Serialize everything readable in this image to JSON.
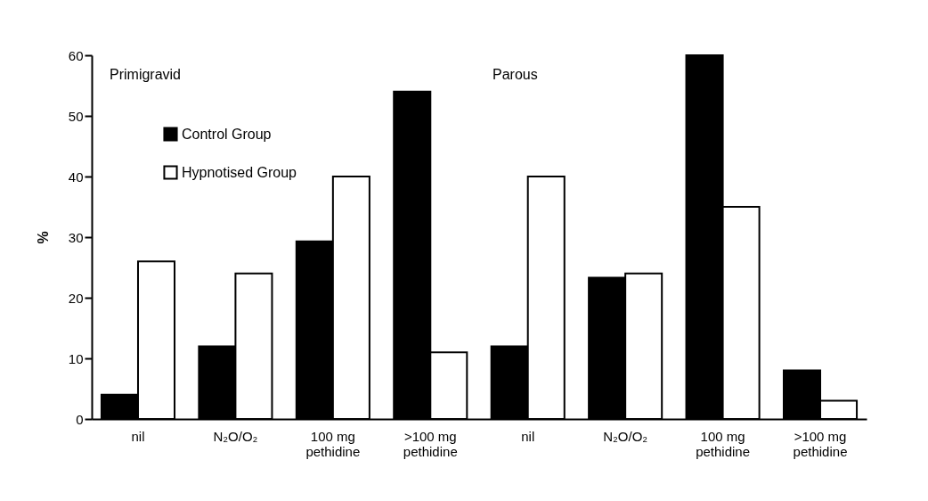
{
  "chart_data": {
    "type": "bar",
    "ylabel": "%",
    "categories": [
      "nil",
      "N₂O/O₂",
      "100 mg pethidine",
      ">100 mg pethidine",
      "nil",
      "N₂O/O₂",
      "100 mg pethidine",
      ">100 mg pethidine"
    ],
    "series": [
      {
        "name": "Control Group",
        "color": "#000000",
        "values": [
          4,
          12,
          29.3,
          54,
          12,
          23.3,
          60,
          8
        ]
      },
      {
        "name": "Hypnotised Group",
        "color": "#ffffff",
        "values": [
          26,
          24,
          40,
          11,
          40,
          24,
          35,
          3
        ]
      }
    ],
    "ylim": [
      0,
      60
    ],
    "yticks": [
      0,
      10,
      20,
      30,
      40,
      50,
      60
    ],
    "legend": "top left",
    "grid": false,
    "annotations": [
      "Primigravid",
      "Parous"
    ]
  }
}
